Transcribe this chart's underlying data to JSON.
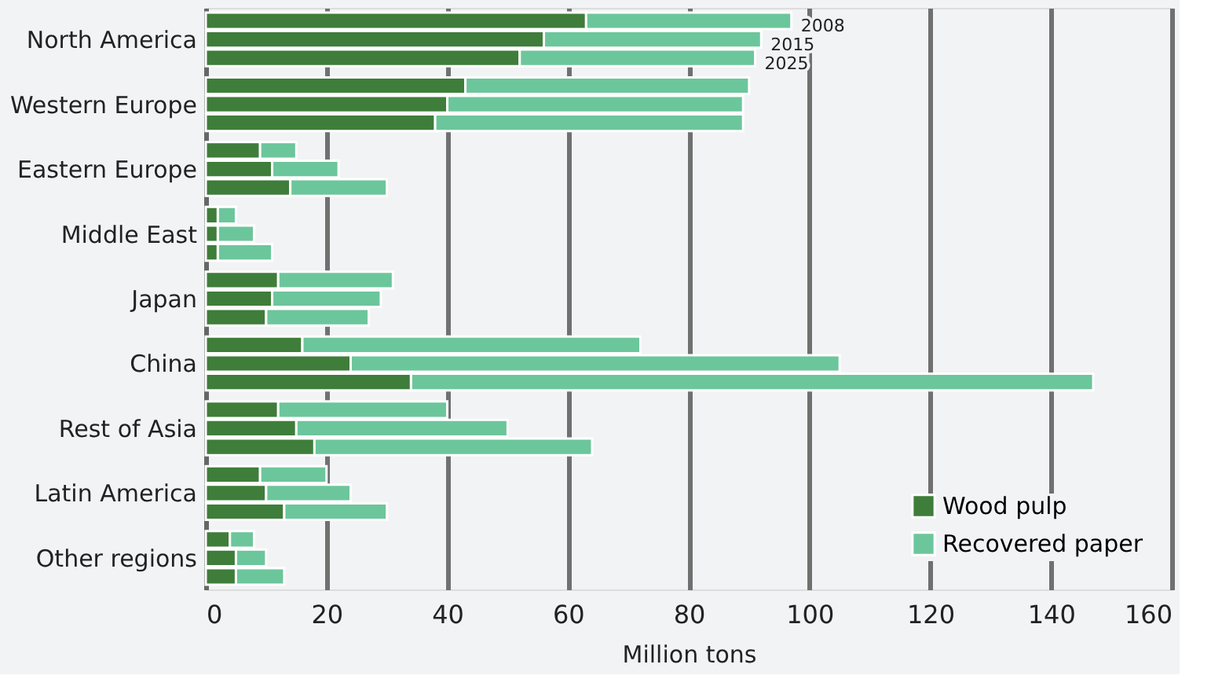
{
  "chart_data": {
    "type": "bar",
    "orientation": "horizontal",
    "stacked": true,
    "categories": [
      null,
      "North America",
      null,
      null,
      "Western Europe",
      null,
      null,
      "Eastern Europe",
      null,
      null,
      "Middle East",
      null,
      null,
      "Japan",
      null,
      null,
      "China",
      null,
      null,
      "Rest of Asia",
      null,
      null,
      "Latin America",
      null,
      null,
      "Other regions",
      null
    ],
    "series": [
      {
        "name": "Wood pulp",
        "color": "#3f7d3a",
        "values": [
          63,
          56,
          52,
          43,
          40,
          38,
          9,
          11,
          14,
          2,
          2,
          2,
          12,
          11,
          10,
          16,
          24,
          34,
          12,
          15,
          18,
          9,
          10,
          13,
          4,
          5,
          5
        ]
      },
      {
        "name": "Recovered paper",
        "color": "#6cc69b",
        "values": [
          34,
          36,
          39,
          47,
          49,
          51,
          6,
          11,
          16,
          3,
          6,
          9,
          19,
          18,
          17,
          56,
          81,
          113,
          28,
          35,
          46,
          11,
          14,
          17,
          4,
          5,
          8
        ]
      }
    ],
    "annotations": [
      "2008",
      "2015",
      "2025"
    ],
    "xlabel": "Million tons",
    "xlim": [
      0,
      160
    ],
    "xticks": [
      0,
      20,
      40,
      60,
      80,
      100,
      120,
      140,
      160
    ],
    "grid": "x",
    "legend": "bottom right"
  }
}
